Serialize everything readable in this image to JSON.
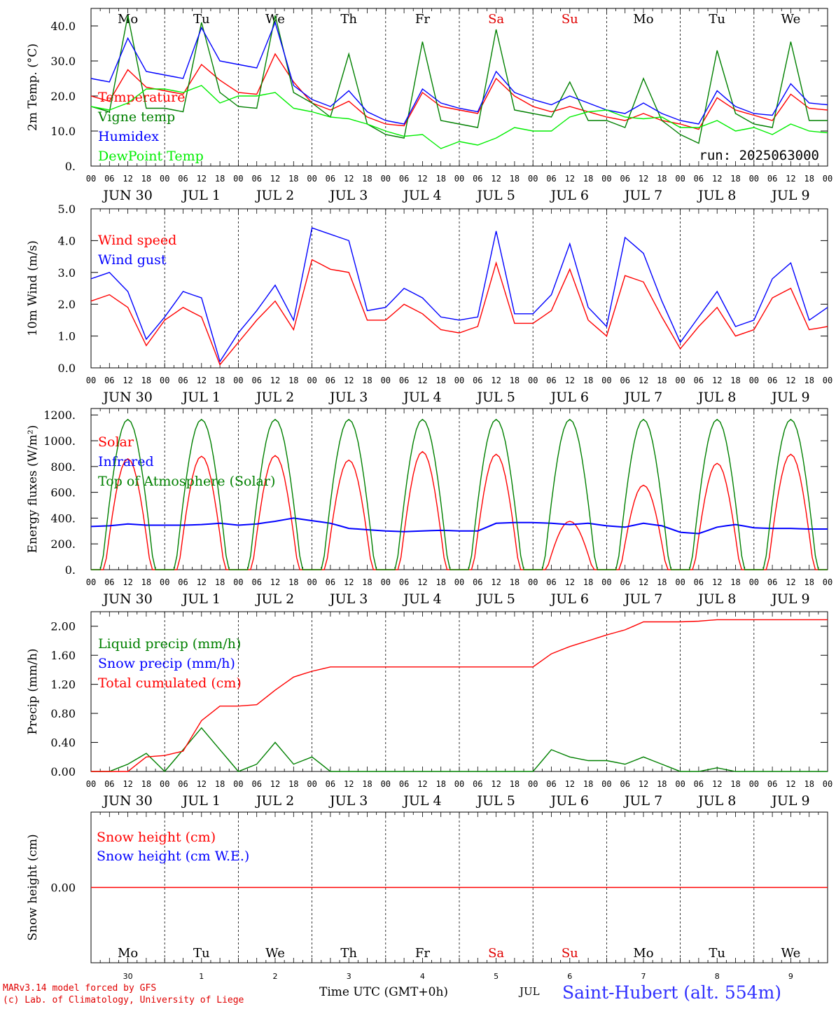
{
  "chart_data": {
    "type": "line",
    "run_label": "run: 2025063000",
    "x_axis": {
      "hour_ticks": [
        "00",
        "06",
        "12",
        "18"
      ],
      "date_labels": [
        "JUN 30",
        "JUL  1",
        "JUL  2",
        "JUL  3",
        "JUL  4",
        "JUL  5",
        "JUL  6",
        "JUL  7",
        "JUL  8",
        "JUL  9"
      ],
      "weekday_labels": [
        "Mo",
        "Tu",
        "We",
        "Th",
        "Fr",
        "Sa",
        "Su",
        "Mo",
        "Tu",
        "We"
      ],
      "weekend_days": [
        5,
        6
      ],
      "bottom_day_numbers": [
        "30",
        "1",
        "2",
        "3",
        "4",
        "5",
        "6",
        "7",
        "8",
        "9"
      ],
      "bottom_month": "JUL",
      "xlabel": "Time UTC (GMT+0h)",
      "station": "Saint-Hubert (alt. 554m)",
      "credits": [
        "MARv3.14 model forced by GFS",
        "(c) Lab. of Climatology, University of Liege"
      ]
    },
    "panels": [
      {
        "id": "temperature",
        "ylabel": "2m Temp. (°C)",
        "ylim": [
          0,
          45
        ],
        "yticks": [
          "0.",
          "10.0",
          "20.0",
          "30.0",
          "40.0"
        ],
        "ytick_values": [
          0,
          10,
          20,
          30,
          40
        ],
        "series": [
          {
            "name": "Temperature",
            "color": "#ff0000",
            "key_hours": [
              0,
              6,
              12,
              18
            ],
            "values": [
              20,
              18.5,
              27.5,
              22.5,
              21.5,
              20.5,
              29,
              24.5,
              21,
              20.5,
              32,
              24,
              18,
              16,
              18.5,
              14,
              12,
              11.5,
              21,
              17,
              16,
              15,
              25,
              20,
              17,
              15.5,
              17,
              15.5,
              14,
              13,
              15,
              13,
              12,
              10.5,
              19.5,
              16,
              14.5,
              13,
              20.5,
              16.5,
              16
            ]
          },
          {
            "name": "Vigne temp",
            "color": "#008000",
            "key_hours": [
              0,
              6,
              12,
              18
            ],
            "values": [
              17,
              15.5,
              43,
              16.5,
              16.5,
              15.5,
              41,
              21,
              17,
              16.5,
              43,
              21,
              18,
              14,
              32,
              12,
              9,
              8,
              35.5,
              13,
              12,
              11,
              39,
              16,
              15,
              14,
              24,
              13,
              13,
              11,
              25,
              13,
              9,
              6.5,
              33,
              15,
              12,
              11,
              35.5,
              13,
              13
            ]
          },
          {
            "name": "Humidex",
            "color": "#0000ff",
            "key_hours": [
              0,
              6,
              12,
              18
            ],
            "values": [
              25,
              24,
              36.5,
              27,
              26,
              25,
              39.5,
              30,
              29,
              28,
              41,
              23,
              19,
              17,
              21.5,
              15.5,
              13,
              12,
              22,
              18,
              16.5,
              15.5,
              27,
              21,
              19,
              17.5,
              20,
              18,
              16,
              15,
              18,
              15,
              13,
              12,
              21.5,
              17,
              15,
              14.5,
              23.5,
              18,
              17.5
            ]
          },
          {
            "name": "DewPoint Temp",
            "color": "#00ee00",
            "key_hours": [
              0,
              6,
              12,
              18
            ],
            "values": [
              17,
              16,
              18,
              22,
              22,
              21,
              23,
              18,
              20,
              20,
              21,
              16.5,
              15.5,
              14,
              13.5,
              12,
              10,
              8.5,
              9,
              5,
              7,
              6,
              8,
              11,
              10,
              10,
              14,
              15.5,
              16,
              14,
              13.5,
              14,
              11,
              11,
              13,
              10,
              11,
              9,
              12,
              10,
              9.5
            ]
          }
        ]
      },
      {
        "id": "wind",
        "ylabel": "10m Wind (m/s)",
        "ylim": [
          0,
          5
        ],
        "yticks": [
          "0.0",
          "1.0",
          "2.0",
          "3.0",
          "4.0",
          "5.0"
        ],
        "ytick_values": [
          0,
          1,
          2,
          3,
          4,
          5
        ],
        "series": [
          {
            "name": "Wind speed",
            "color": "#ff0000",
            "key_hours": [
              0,
              6,
              12,
              18
            ],
            "values": [
              2.1,
              2.3,
              1.9,
              0.7,
              1.5,
              1.9,
              1.6,
              0.1,
              0.8,
              1.5,
              2.1,
              1.2,
              3.4,
              3.1,
              3.0,
              1.5,
              1.5,
              2.0,
              1.7,
              1.2,
              1.1,
              1.3,
              3.3,
              1.4,
              1.4,
              1.8,
              3.1,
              1.5,
              1.0,
              2.9,
              2.7,
              1.6,
              0.6,
              1.3,
              1.9,
              1.0,
              1.2,
              2.2,
              2.5,
              1.2,
              1.3
            ]
          },
          {
            "name": "Wind gust",
            "color": "#0000ff",
            "key_hours": [
              0,
              6,
              12,
              18
            ],
            "values": [
              2.8,
              3.0,
              2.4,
              0.9,
              1.6,
              2.4,
              2.2,
              0.2,
              1.1,
              1.8,
              2.6,
              1.5,
              4.4,
              4.2,
              4.0,
              1.8,
              1.9,
              2.5,
              2.2,
              1.6,
              1.5,
              1.6,
              4.3,
              1.7,
              1.7,
              2.3,
              3.9,
              1.9,
              1.3,
              4.1,
              3.6,
              2.1,
              0.8,
              1.6,
              2.4,
              1.3,
              1.5,
              2.8,
              3.3,
              1.5,
              1.9
            ]
          }
        ]
      },
      {
        "id": "energy",
        "ylabel": "Energy fluxes (W/m²)",
        "ylim": [
          0,
          1250
        ],
        "yticks": [
          "0.",
          "200.",
          "400.",
          "600.",
          "800.",
          "1000.",
          "1200."
        ],
        "ytick_values": [
          0,
          200,
          400,
          600,
          800,
          1000,
          1200
        ],
        "series": [
          {
            "name": "Solar",
            "color": "#ff0000",
            "daily_peaks": [
              860,
              880,
              885,
              850,
              915,
              895,
              375,
              655,
              825,
              895
            ]
          },
          {
            "name": "Infrared",
            "color": "#0000ff",
            "key_hours": [
              0,
              6,
              12,
              18
            ],
            "values": [
              335,
              340,
              355,
              345,
              345,
              345,
              350,
              360,
              345,
              355,
              375,
              400,
              380,
              360,
              320,
              310,
              300,
              295,
              300,
              305,
              300,
              300,
              360,
              365,
              365,
              360,
              350,
              360,
              340,
              330,
              360,
              340,
              290,
              280,
              330,
              350,
              325,
              320,
              320,
              315,
              315
            ]
          },
          {
            "name": "Top of Atmosphere (Solar)",
            "color": "#008000",
            "daily_peak": 1165
          }
        ]
      },
      {
        "id": "precip",
        "ylabel": "Precip (mm/h)",
        "ylim": [
          0,
          2.2
        ],
        "yticks": [
          "0.00",
          "0.40",
          "0.80",
          "1.20",
          "1.60",
          "2.00"
        ],
        "ytick_values": [
          0,
          0.4,
          0.8,
          1.2,
          1.6,
          2.0
        ],
        "series": [
          {
            "name": "Liquid precip (mm/h)",
            "color": "#008000",
            "key_hours": [
              0,
              6,
              12,
              18
            ],
            "values": [
              0,
              0,
              0.1,
              0.25,
              0,
              0.3,
              0.6,
              0.3,
              0,
              0.1,
              0.4,
              0.1,
              0.2,
              0,
              0,
              0,
              0,
              0,
              0,
              0,
              0,
              0,
              0,
              0,
              0,
              0.3,
              0.2,
              0.15,
              0.15,
              0.1,
              0.2,
              0.1,
              0,
              0,
              0.05,
              0,
              0,
              0,
              0,
              0,
              0
            ]
          },
          {
            "name": "Snow precip (mm/h)",
            "color": "#0000ff",
            "key_hours": [
              0,
              6,
              12,
              18
            ],
            "values": [
              0,
              0,
              0,
              0,
              0,
              0,
              0,
              0,
              0,
              0,
              0,
              0,
              0,
              0,
              0,
              0,
              0,
              0,
              0,
              0,
              0,
              0,
              0,
              0,
              0,
              0,
              0,
              0,
              0,
              0,
              0,
              0,
              0,
              0,
              0,
              0,
              0,
              0,
              0,
              0,
              0
            ]
          },
          {
            "name": "Total cumulated (cm)",
            "color": "#ff0000",
            "key_hours": [
              0,
              6,
              12,
              18
            ],
            "values": [
              0,
              0,
              0,
              0.2,
              0.22,
              0.28,
              0.7,
              0.9,
              0.9,
              0.92,
              1.12,
              1.3,
              1.38,
              1.44,
              1.44,
              1.44,
              1.44,
              1.44,
              1.44,
              1.44,
              1.44,
              1.44,
              1.44,
              1.44,
              1.44,
              1.62,
              1.72,
              1.8,
              1.88,
              1.95,
              2.06,
              2.06,
              2.06,
              2.07,
              2.09,
              2.09,
              2.09,
              2.09,
              2.09,
              2.09,
              2.09
            ]
          }
        ]
      },
      {
        "id": "snow",
        "ylabel": "Snow height (cm)",
        "ylim": [
          -1,
          1
        ],
        "yticks": [
          "0.00"
        ],
        "ytick_values": [
          0
        ],
        "series": [
          {
            "name": "Snow height (cm)",
            "color": "#ff0000",
            "values": [
              0,
              0
            ]
          },
          {
            "name": "Snow height (cm W.E.)",
            "color": "#0000ff",
            "values": [
              0,
              0
            ]
          }
        ]
      }
    ]
  }
}
